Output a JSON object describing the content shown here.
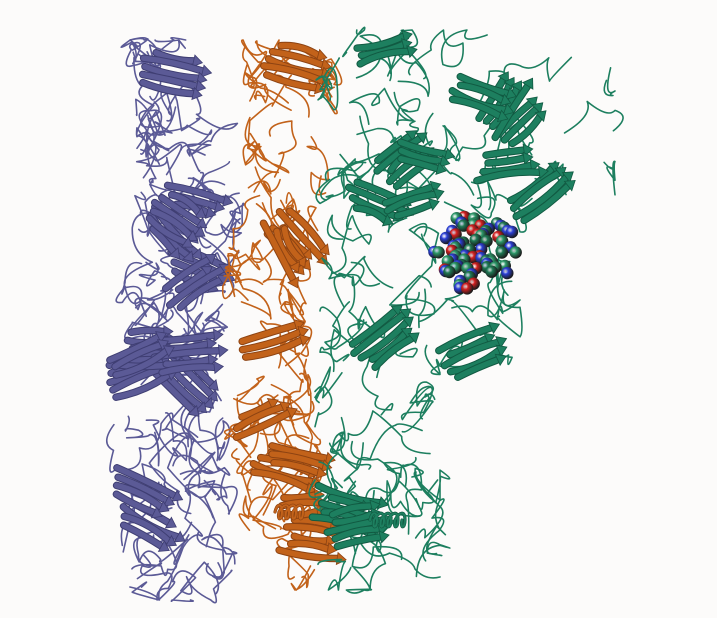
{
  "scene": {
    "subject": "protein-trimer-ribbon-structure",
    "background_color": "#fcfbfa",
    "chains": [
      {
        "name": "chain-a",
        "color": "#5b5a96",
        "shade": "#3f3e73"
      },
      {
        "name": "chain-b",
        "color": "#c2621a",
        "shade": "#8d4312"
      },
      {
        "name": "chain-c",
        "color": "#1d7f5f",
        "shade": "#115a42"
      }
    ],
    "ligand": {
      "name": "ligand-spheres",
      "colors": [
        "#d42020",
        "#2d9a6a",
        "#2b3fd6",
        "#1f7a55"
      ]
    }
  }
}
